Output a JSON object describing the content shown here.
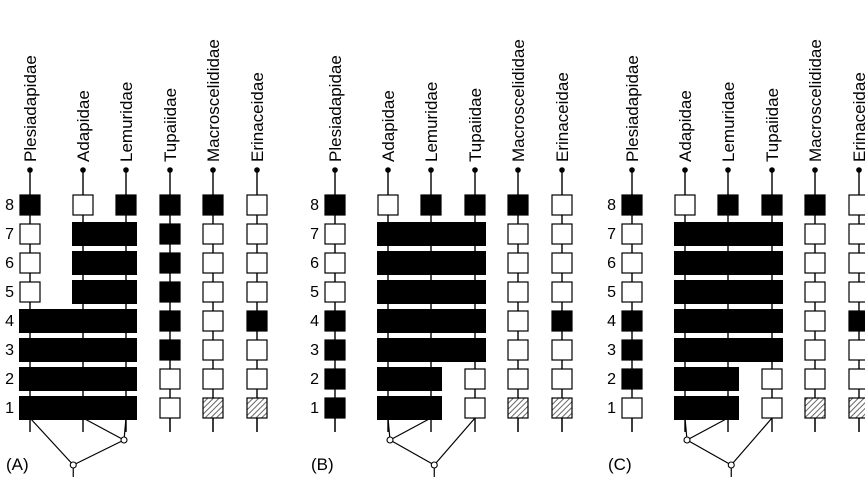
{
  "colors": {
    "line": "#000000",
    "fill": "#000000",
    "empty": "#ffffff",
    "hatch": "#888888"
  },
  "panels": [
    {
      "label": "(A)",
      "taxa": [
        "Plesiadapidae",
        "Adapidae",
        "Lemuridae",
        "Tupaiidae",
        "Macroscelididae",
        "Erinaceidae"
      ],
      "character_numbers": [
        "8",
        "7",
        "6",
        "5",
        "4",
        "3",
        "2",
        "1"
      ],
      "states": [
        [
          "filled",
          "empty",
          "empty",
          "empty",
          "filled",
          "filled",
          "filled",
          "filled"
        ],
        [
          "empty",
          "filled",
          "filled",
          "filled",
          "filled",
          "filled",
          "filled",
          "filled"
        ],
        [
          "filled",
          "filled",
          "filled",
          "filled",
          "filled",
          "filled",
          "filled",
          "filled"
        ],
        [
          "filled",
          "filled",
          "filled",
          "filled",
          "filled",
          "filled",
          "empty",
          "empty"
        ],
        [
          "filled",
          "empty",
          "empty",
          "empty",
          "empty",
          "empty",
          "empty",
          "hatched"
        ],
        [
          "empty",
          "empty",
          "empty",
          "empty",
          "filled",
          "empty",
          "empty",
          "hatched"
        ]
      ],
      "clade_bars": [
        {
          "character": "7",
          "from_taxon": 1,
          "to_taxon": 2
        },
        {
          "character": "6",
          "from_taxon": 1,
          "to_taxon": 2
        },
        {
          "character": "5",
          "from_taxon": 1,
          "to_taxon": 2
        },
        {
          "character": "4",
          "from_taxon": 0,
          "to_taxon": 2
        },
        {
          "character": "3",
          "from_taxon": 0,
          "to_taxon": 2
        },
        {
          "character": "2",
          "from_taxon": 0,
          "to_taxon": 2
        },
        {
          "character": "1",
          "from_taxon": 0,
          "to_taxon": 2
        }
      ],
      "tree": {
        "inner_pair": [
          1,
          2
        ],
        "outer": 0
      }
    },
    {
      "label": "(B)",
      "taxa": [
        "Plesiadapidae",
        "Adapidae",
        "Lemuridae",
        "Tupaiidae",
        "Macroscelididae",
        "Erinaceidae"
      ],
      "character_numbers": [
        "8",
        "7",
        "6",
        "5",
        "4",
        "3",
        "2",
        "1"
      ],
      "states": [
        [
          "filled",
          "empty",
          "empty",
          "empty",
          "filled",
          "filled",
          "filled",
          "filled"
        ],
        [
          "empty",
          "filled",
          "filled",
          "filled",
          "filled",
          "filled",
          "filled",
          "filled"
        ],
        [
          "filled",
          "filled",
          "filled",
          "filled",
          "filled",
          "filled",
          "filled",
          "filled"
        ],
        [
          "filled",
          "filled",
          "filled",
          "filled",
          "filled",
          "filled",
          "empty",
          "empty"
        ],
        [
          "filled",
          "empty",
          "empty",
          "empty",
          "empty",
          "empty",
          "empty",
          "hatched"
        ],
        [
          "empty",
          "empty",
          "empty",
          "empty",
          "filled",
          "empty",
          "empty",
          "hatched"
        ]
      ],
      "clade_bars": [
        {
          "character": "7",
          "from_taxon": 1,
          "to_taxon": 3
        },
        {
          "character": "6",
          "from_taxon": 1,
          "to_taxon": 3
        },
        {
          "character": "5",
          "from_taxon": 1,
          "to_taxon": 3
        },
        {
          "character": "4",
          "from_taxon": 1,
          "to_taxon": 3
        },
        {
          "character": "3",
          "from_taxon": 1,
          "to_taxon": 3
        },
        {
          "character": "2",
          "from_taxon": 1,
          "to_taxon": 2
        },
        {
          "character": "1",
          "from_taxon": 1,
          "to_taxon": 2
        }
      ],
      "tree": {
        "inner_pair": [
          1,
          2
        ],
        "outer": 3
      }
    },
    {
      "label": "(C)",
      "taxa": [
        "Plesiadapidae",
        "Adapidae",
        "Lemuridae",
        "Tupaiidae",
        "Macroscelididae",
        "Erinaceidae"
      ],
      "character_numbers": [
        "8",
        "7",
        "6",
        "5",
        "4",
        "3",
        "2",
        "1"
      ],
      "states": [
        [
          "filled",
          "empty",
          "empty",
          "empty",
          "filled",
          "filled",
          "filled",
          "empty"
        ],
        [
          "empty",
          "filled",
          "filled",
          "filled",
          "filled",
          "filled",
          "filled",
          "filled"
        ],
        [
          "filled",
          "filled",
          "filled",
          "filled",
          "filled",
          "filled",
          "filled",
          "filled"
        ],
        [
          "filled",
          "filled",
          "filled",
          "filled",
          "filled",
          "filled",
          "empty",
          "empty"
        ],
        [
          "filled",
          "empty",
          "empty",
          "empty",
          "empty",
          "empty",
          "empty",
          "hatched"
        ],
        [
          "empty",
          "empty",
          "empty",
          "empty",
          "filled",
          "empty",
          "empty",
          "hatched"
        ]
      ],
      "clade_bars": [
        {
          "character": "7",
          "from_taxon": 1,
          "to_taxon": 3
        },
        {
          "character": "6",
          "from_taxon": 1,
          "to_taxon": 3
        },
        {
          "character": "5",
          "from_taxon": 1,
          "to_taxon": 3
        },
        {
          "character": "4",
          "from_taxon": 1,
          "to_taxon": 3
        },
        {
          "character": "3",
          "from_taxon": 1,
          "to_taxon": 3
        },
        {
          "character": "2",
          "from_taxon": 1,
          "to_taxon": 2
        },
        {
          "character": "1",
          "from_taxon": 1,
          "to_taxon": 2
        }
      ],
      "tree": {
        "inner_pair": [
          1,
          2
        ],
        "outer": 3
      }
    }
  ]
}
